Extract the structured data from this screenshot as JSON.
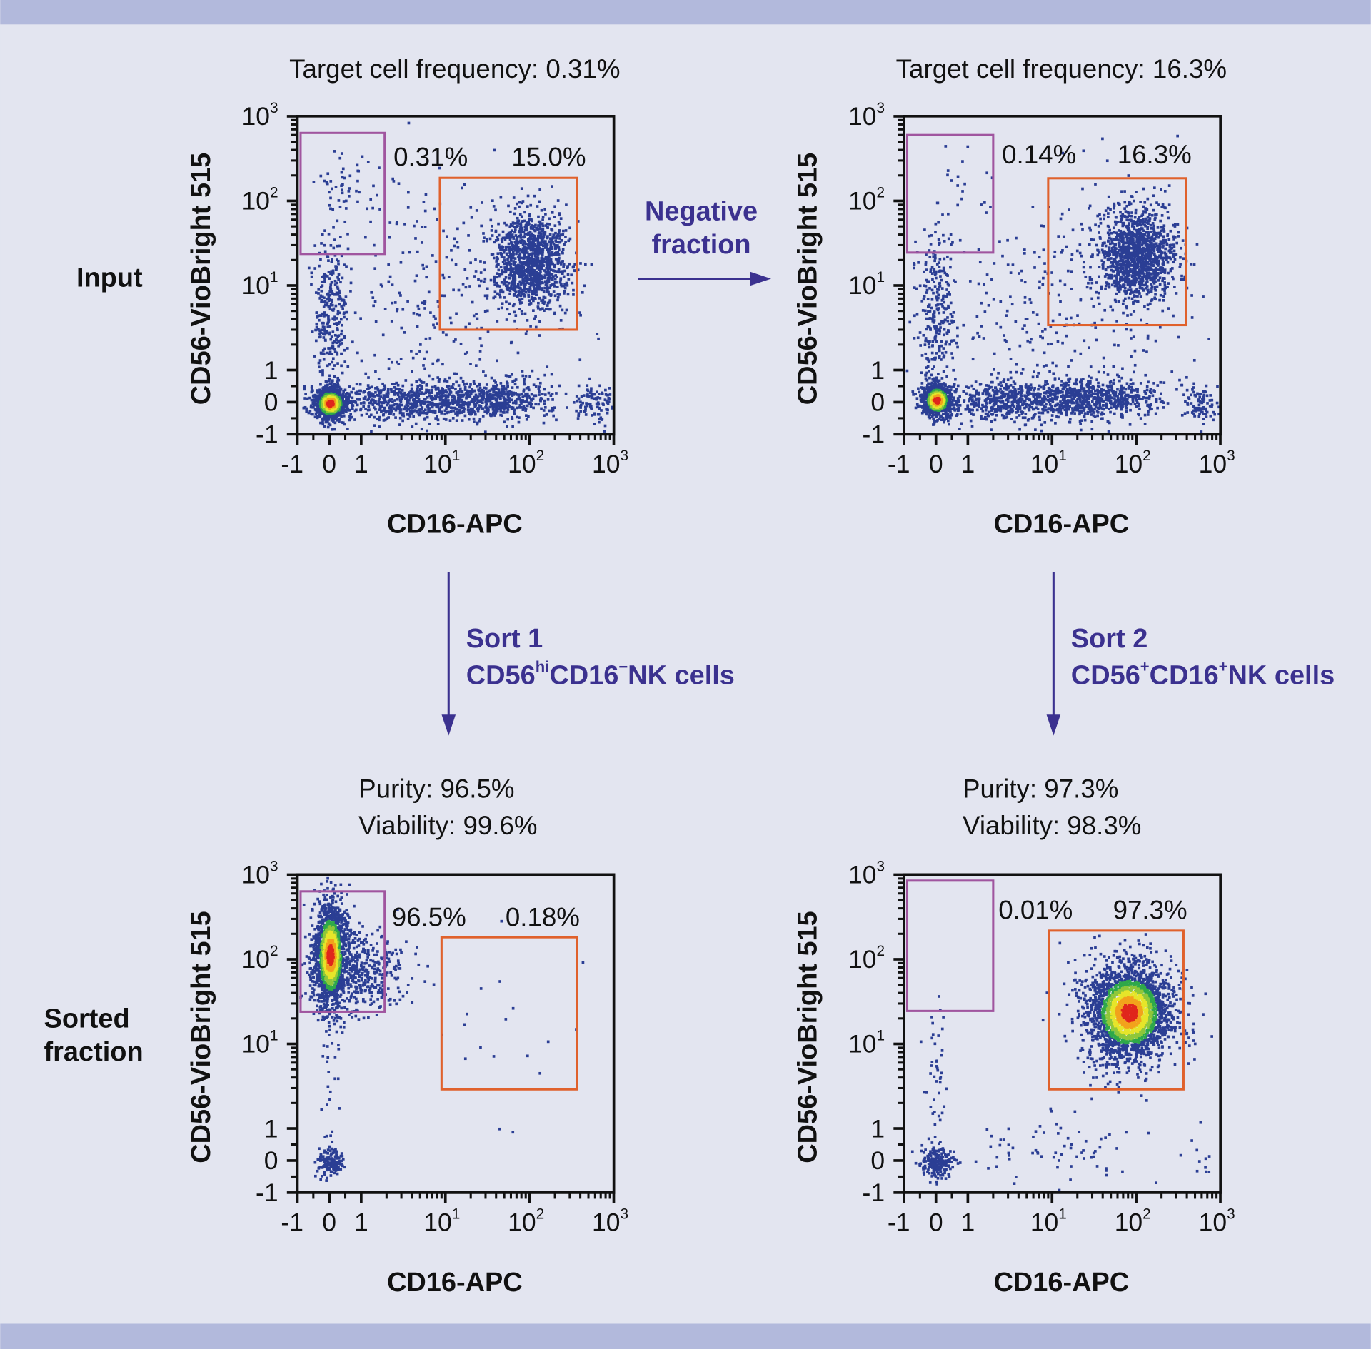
{
  "colors": {
    "background": "#e3e5f0",
    "band": "#b2b9dc",
    "arrow": "#3b318f",
    "gate_cd56bright": "#a0559f",
    "gate_cd16pos": "#e0612c",
    "dots": "#2b3e94"
  },
  "row_labels": {
    "input": "Input",
    "sorted_line1": "Sorted",
    "sorted_line2": "fraction"
  },
  "flow": {
    "negative_line1": "Negative",
    "negative_line2": "fraction",
    "sort1": {
      "title": "Sort 1",
      "p1": "CD56",
      "p2": "hi",
      "p3": "CD16",
      "p4": "−",
      "p5": "NK cells"
    },
    "sort2": {
      "title": "Sort 2",
      "p1": "CD56",
      "p2": "+",
      "p3": "CD16",
      "p4": "+",
      "p5": "NK cells"
    }
  },
  "chart_data": [
    {
      "type": "scatter",
      "title": "Target cell frequency: 0.31%",
      "xlabel": "CD16-APC",
      "ylabel": "CD56-VioBright 515",
      "scale": "biexponential",
      "xlim": [
        -1,
        1000
      ],
      "ylim": [
        -1,
        1000
      ],
      "x_ticks": [
        {
          "b": "-1",
          "e": ""
        },
        {
          "b": "0",
          "e": ""
        },
        {
          "b": "1",
          "e": ""
        },
        {
          "b": "10",
          "e": "1"
        },
        {
          "b": "10",
          "e": "2"
        },
        {
          "b": "10",
          "e": "3"
        }
      ],
      "y_ticks": [
        {
          "b": "-1",
          "e": ""
        },
        {
          "b": "0",
          "e": ""
        },
        {
          "b": "1",
          "e": ""
        },
        {
          "b": "10",
          "e": "1"
        },
        {
          "b": "10",
          "e": "2"
        },
        {
          "b": "10",
          "e": "3"
        }
      ],
      "gates": [
        {
          "name": "CD56hi CD16-",
          "x": [
            -0.9,
            1.9
          ],
          "y": [
            23.6,
            635
          ],
          "percent": "0.31%",
          "color": "#a0559f"
        },
        {
          "name": "CD56+ CD16+",
          "x": [
            8.6,
            365
          ],
          "y": [
            3.0,
            187
          ],
          "percent": "15.0%",
          "color": "#e0612c"
        }
      ],
      "populations": [
        {
          "x": 0,
          "y": 0,
          "sdx": 0.1,
          "sdy": 0.1,
          "n": 900,
          "peak": true
        },
        {
          "x": 3,
          "y": 0.1,
          "sdx": 0.4,
          "sdy": 0.12,
          "n": 500
        },
        {
          "x": 30,
          "y": 0.1,
          "sdx": 0.4,
          "sdy": 0.12,
          "n": 600
        },
        {
          "x": 600,
          "y": 0,
          "sdx": 0.12,
          "sdy": 0.12,
          "n": 100
        },
        {
          "x": 0,
          "y": 5,
          "sdx": 0.1,
          "sdy": 0.5,
          "n": 300
        },
        {
          "x": 100,
          "y": 20,
          "sdx": 0.22,
          "sdy": 0.28,
          "n": 1200
        },
        {
          "x": 10,
          "y": 5,
          "sdx": 0.8,
          "sdy": 0.8,
          "n": 300
        },
        {
          "x": 0.5,
          "y": 150,
          "sdx": 0.2,
          "sdy": 0.15,
          "n": 40
        }
      ]
    },
    {
      "type": "scatter",
      "title": "Target cell frequency: 16.3%",
      "xlabel": "CD16-APC",
      "ylabel": "CD56-VioBright 515",
      "scale": "biexponential",
      "xlim": [
        -1,
        1000
      ],
      "ylim": [
        -1,
        1000
      ],
      "x_ticks": [
        {
          "b": "-1",
          "e": ""
        },
        {
          "b": "0",
          "e": ""
        },
        {
          "b": "1",
          "e": ""
        },
        {
          "b": "10",
          "e": "1"
        },
        {
          "b": "10",
          "e": "2"
        },
        {
          "b": "10",
          "e": "3"
        }
      ],
      "y_ticks": [
        {
          "b": "-1",
          "e": ""
        },
        {
          "b": "0",
          "e": ""
        },
        {
          "b": "1",
          "e": ""
        },
        {
          "b": "10",
          "e": "1"
        },
        {
          "b": "10",
          "e": "2"
        },
        {
          "b": "10",
          "e": "3"
        }
      ],
      "gates": [
        {
          "name": "CD56hi CD16-",
          "x": [
            -0.9,
            2.0
          ],
          "y": [
            24.5,
            600
          ],
          "percent": "0.14%",
          "color": "#a0559f"
        },
        {
          "name": "CD56+ CD16+",
          "x": [
            9,
            390
          ],
          "y": [
            3.4,
            185
          ],
          "percent": "16.3%",
          "color": "#e0612c"
        }
      ],
      "populations": [
        {
          "x": 0,
          "y": 0.1,
          "sdx": 0.09,
          "sdy": 0.1,
          "n": 800,
          "peak": true
        },
        {
          "x": 3,
          "y": 0.1,
          "sdx": 0.4,
          "sdy": 0.12,
          "n": 500
        },
        {
          "x": 30,
          "y": 0.15,
          "sdx": 0.4,
          "sdy": 0.12,
          "n": 650
        },
        {
          "x": 600,
          "y": 0,
          "sdx": 0.12,
          "sdy": 0.12,
          "n": 100
        },
        {
          "x": 0,
          "y": 5,
          "sdx": 0.1,
          "sdy": 0.5,
          "n": 280
        },
        {
          "x": 100,
          "y": 25,
          "sdx": 0.22,
          "sdy": 0.28,
          "n": 1300
        },
        {
          "x": 10,
          "y": 5,
          "sdx": 0.8,
          "sdy": 0.8,
          "n": 300
        },
        {
          "x": 0.5,
          "y": 150,
          "sdx": 0.2,
          "sdy": 0.2,
          "n": 15
        }
      ]
    },
    {
      "type": "scatter",
      "title_line1": "Purity: 96.5%",
      "title_line2": "Viability: 99.6%",
      "xlabel": "CD16-APC",
      "ylabel": "CD56-VioBright 515",
      "scale": "biexponential",
      "xlim": [
        -1,
        1000
      ],
      "ylim": [
        -1,
        1000
      ],
      "x_ticks": [
        {
          "b": "-1",
          "e": ""
        },
        {
          "b": "0",
          "e": ""
        },
        {
          "b": "1",
          "e": ""
        },
        {
          "b": "10",
          "e": "1"
        },
        {
          "b": "10",
          "e": "2"
        },
        {
          "b": "10",
          "e": "3"
        }
      ],
      "y_ticks": [
        {
          "b": "-1",
          "e": ""
        },
        {
          "b": "0",
          "e": ""
        },
        {
          "b": "1",
          "e": ""
        },
        {
          "b": "10",
          "e": "1"
        },
        {
          "b": "10",
          "e": "2"
        },
        {
          "b": "10",
          "e": "3"
        }
      ],
      "gates": [
        {
          "name": "CD56hi CD16-",
          "x": [
            -0.9,
            1.9
          ],
          "y": [
            24,
            635
          ],
          "percent": "96.5%",
          "color": "#a0559f"
        },
        {
          "name": "CD56+ CD16+",
          "x": [
            9,
            365
          ],
          "y": [
            2.9,
            182
          ],
          "percent": "0.18%",
          "color": "#e0612c"
        }
      ],
      "populations": [
        {
          "x": 0,
          "y": 120,
          "sdx": 0.1,
          "sdy": 0.33,
          "n": 1500,
          "peak": true
        },
        {
          "x": 0.8,
          "y": 80,
          "sdx": 0.3,
          "sdy": 0.25,
          "n": 500
        },
        {
          "x": 0,
          "y": 0,
          "sdx": 0.08,
          "sdy": 0.08,
          "n": 150
        },
        {
          "x": 0,
          "y": 3,
          "sdx": 0.06,
          "sdy": 0.5,
          "n": 20
        },
        {
          "x": 50,
          "y": 10,
          "sdx": 0.4,
          "sdy": 0.6,
          "n": 18
        }
      ]
    },
    {
      "type": "scatter",
      "title_line1": "Purity: 97.3%",
      "title_line2": "Viability: 98.3%",
      "xlabel": "CD16-APC",
      "ylabel": "CD56-VioBright 515",
      "scale": "biexponential",
      "xlim": [
        -1,
        1000
      ],
      "ylim": [
        -1,
        1000
      ],
      "x_ticks": [
        {
          "b": "-1",
          "e": ""
        },
        {
          "b": "0",
          "e": ""
        },
        {
          "b": "1",
          "e": ""
        },
        {
          "b": "10",
          "e": "1"
        },
        {
          "b": "10",
          "e": "2"
        },
        {
          "b": "10",
          "e": "3"
        }
      ],
      "y_ticks": [
        {
          "b": "-1",
          "e": ""
        },
        {
          "b": "0",
          "e": ""
        },
        {
          "b": "1",
          "e": ""
        },
        {
          "b": "10",
          "e": "1"
        },
        {
          "b": "10",
          "e": "2"
        },
        {
          "b": "10",
          "e": "3"
        }
      ],
      "gates": [
        {
          "name": "CD56hi CD16-",
          "x": [
            -0.9,
            2.0
          ],
          "y": [
            24.5,
            850
          ],
          "percent": "0.01%",
          "color": "#a0559f"
        },
        {
          "name": "CD56+ CD16+",
          "x": [
            9.2,
            365
          ],
          "y": [
            2.9,
            218
          ],
          "percent": "97.3%",
          "color": "#e0612c"
        }
      ],
      "populations": [
        {
          "x": 80,
          "y": 25,
          "sdx": 0.26,
          "sdy": 0.3,
          "n": 2500,
          "peak": true
        },
        {
          "x": 0,
          "y": 0,
          "sdx": 0.1,
          "sdy": 0.1,
          "n": 220
        },
        {
          "x": 0,
          "y": 5,
          "sdx": 0.08,
          "sdy": 0.4,
          "n": 40
        },
        {
          "x": 10,
          "y": 0.3,
          "sdx": 0.6,
          "sdy": 0.2,
          "n": 70
        },
        {
          "x": 600,
          "y": 0.3,
          "sdx": 0.1,
          "sdy": 0.15,
          "n": 10
        }
      ]
    }
  ]
}
